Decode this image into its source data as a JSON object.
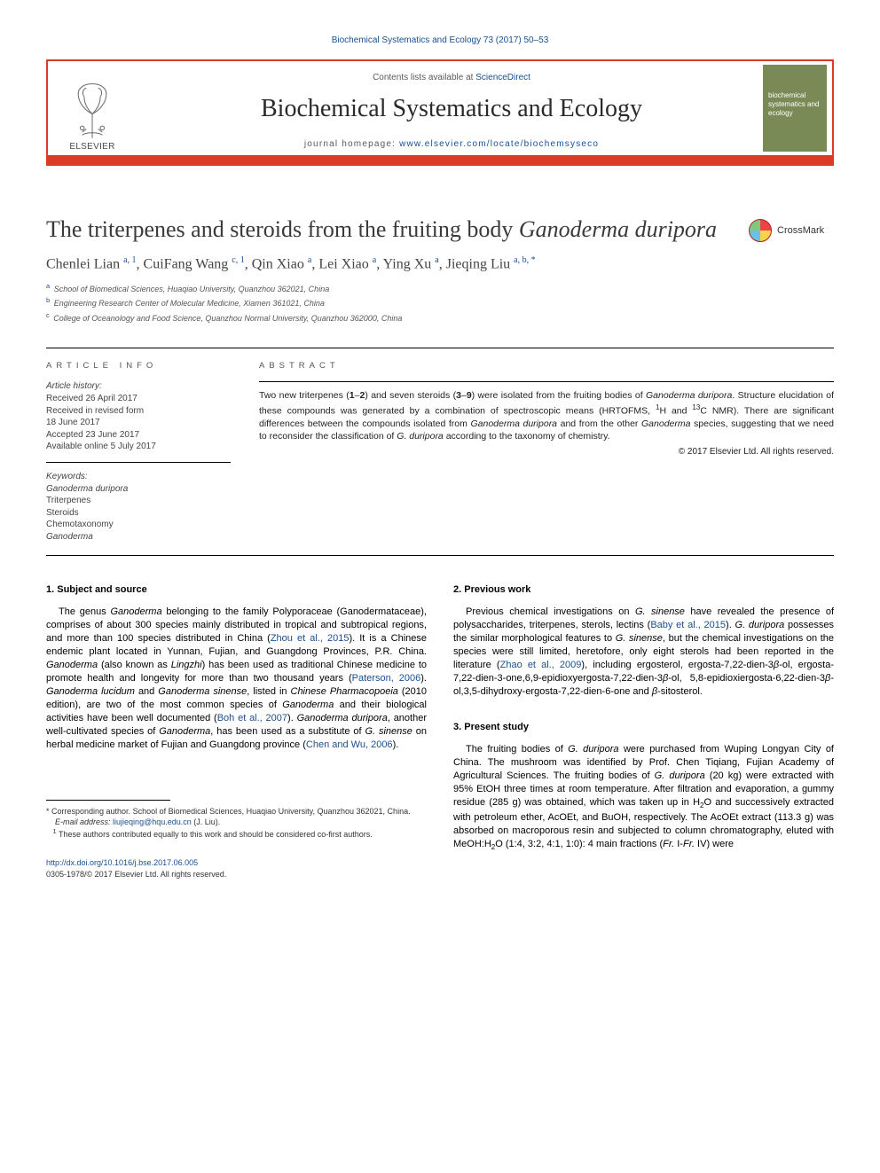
{
  "colors": {
    "accent_red": "#da3b26",
    "link_blue": "#1a4f8f",
    "cover_green": "#7a8a56",
    "text_dark": "#222222"
  },
  "top_reference": "Biochemical Systematics and Ecology 73 (2017) 50–53",
  "header": {
    "publisher_name": "ELSEVIER",
    "contents_label": "Contents lists available at ",
    "contents_link_text": "ScienceDirect",
    "journal_title": "Biochemical Systematics and Ecology",
    "homepage_label": "journal homepage: ",
    "homepage_url": "www.elsevier.com/locate/biochemsyseco",
    "cover_text": "biochemical systematics and ecology"
  },
  "crossmark_label": "CrossMark",
  "article": {
    "title_pre": "The triterpenes and steroids from the fruiting body ",
    "title_species": "Ganoderma duripora",
    "authors_html": "Chenlei Lian <sup>a, 1</sup>, CuiFang Wang <sup>c, 1</sup>, Qin Xiao <sup>a</sup>, Lei Xiao <sup>a</sup>, Ying Xu <sup>a</sup>, Jieqing Liu <sup>a, b, *</sup>",
    "affiliations": [
      {
        "sup": "a",
        "text": "School of Biomedical Sciences, Huaqiao University, Quanzhou 362021, China"
      },
      {
        "sup": "b",
        "text": "Engineering Research Center of Molecular Medicine, Xiamen 361021, China"
      },
      {
        "sup": "c",
        "text": "College of Oceanology and Food Science, Quanzhou Normal University, Quanzhou 362000, China"
      }
    ]
  },
  "meta": {
    "article_info_label": "ARTICLE INFO",
    "abstract_label": "ABSTRACT",
    "history_head": "Article history:",
    "history": [
      "Received 26 April 2017",
      "Received in revised form",
      "18 June 2017",
      "Accepted 23 June 2017",
      "Available online 5 July 2017"
    ],
    "keywords_head": "Keywords:",
    "keywords": [
      "Ganoderma duripora",
      "Triterpenes",
      "Steroids",
      "Chemotaxonomy",
      "Ganoderma"
    ],
    "abstract_html": "Two new triterpenes (<b>1</b>–<b>2</b>) and seven steroids (<b>3</b>–<b>9</b>) were isolated from the fruiting bodies of <em>Ganoderma duripora</em>. Structure elucidation of these compounds was generated by a combination of spectroscopic means (HRTOFMS, <sup>1</sup>H and <sup>13</sup>C NMR). There are significant differences between the compounds isolated from <em>Ganoderma duripora</em> and from the other <em>Ganoderma</em> species, suggesting that we need to reconsider the classification of <em>G. duripora</em> according to the taxonomy of chemistry.",
    "copyright": "© 2017 Elsevier Ltd. All rights reserved."
  },
  "sections": {
    "s1_head": "1. Subject and source",
    "s1_para": "The genus <em>Ganoderma</em> belonging to the family Polyporaceae (Ganodermataceae), comprises of about 300 species mainly distributed in tropical and subtropical regions, and more than 100 species distributed in China (<a>Zhou et al., 2015</a>). It is a Chinese endemic plant located in Yunnan, Fujian, and Guangdong Provinces, P.R. China. <em>Ganoderma</em> (also known as <em>Lingzhi</em>) has been used as traditional Chinese medicine to promote health and longevity for more than two thousand years (<a>Paterson, 2006</a>). <em>Ganoderma lucidum</em> and <em>Ganoderma sinense</em>, listed in <em>Chinese Pharmacopoeia</em> (2010 edition), are two of the most common species of <em>Ganoderma</em> and their biological activities have been well documented (<a>Boh et al., 2007</a>). <em>Ganoderma duripora</em>, another well-cultivated species of <em>Ganoderma</em>, has been used as a substitute of <em>G. sinense</em> on herbal medicine market of Fujian and Guangdong province (<a>Chen and Wu, 2006</a>).",
    "s2_head": "2. Previous work",
    "s2_para": "Previous chemical investigations on <em>G. sinense</em> have revealed the presence of polysaccharides, triterpenes, sterols, lectins (<a>Baby et al., 2015</a>). <em>G. duripora</em> possesses the similar morphological features to <em>G. sinense</em>, but the chemical investigations on the species were still limited, heretofore, only eight sterols had been reported in the literature (<a>Zhao et al., 2009</a>), including ergosterol, ergosta-7,22-dien-3<span class='greek'>β</span>-ol, ergosta-7,22-dien-3-one,6,9-epidioxyergosta-7,22-dien-3<span class='greek'>β</span>-ol, 5,8-epidioxiergosta-6,22-dien-3<span class='greek'>β</span>-ol,3,5-dihydroxy-ergosta-7,22-dien-6-one and <span class='greek'>β</span>-sitosterol.",
    "s3_head": "3. Present study",
    "s3_para": "The fruiting bodies of <em>G. duripora</em> were purchased from Wuping Longyan City of China. The mushroom was identified by Prof. Chen Tiqiang, Fujian Academy of Agricultural Sciences. The fruiting bodies of <em>G. duripora</em> (20 kg) were extracted with 95% EtOH three times at room temperature. After filtration and evaporation, a gummy residue (285 g) was obtained, which was taken up in H<span class='sub'>2</span>O and successively extracted with petroleum ether, AcOEt, and BuOH, respectively. The AcOEt extract (113.3 g) was absorbed on macroporous resin and subjected to column chromatography, eluted with MeOH:H<span class='sub'>2</span>O (1:4, 3:2, 4:1, 1:0): 4 main fractions (<em>Fr.</em> I-<em>Fr.</em> IV) were"
  },
  "footnotes": {
    "corr": "* Corresponding author. School of Biomedical Sciences, Huaqiao University, Quanzhou 362021, China.",
    "email_label": "E-mail address: ",
    "email": "liujieqing@hqu.edu.cn",
    "email_tail": " (J. Liu).",
    "equal": "These authors contributed equally to this work and should be considered co-first authors.",
    "equal_sup": "1"
  },
  "footer": {
    "doi": "http://dx.doi.org/10.1016/j.bse.2017.06.005",
    "issn_line": "0305-1978/© 2017 Elsevier Ltd. All rights reserved."
  }
}
